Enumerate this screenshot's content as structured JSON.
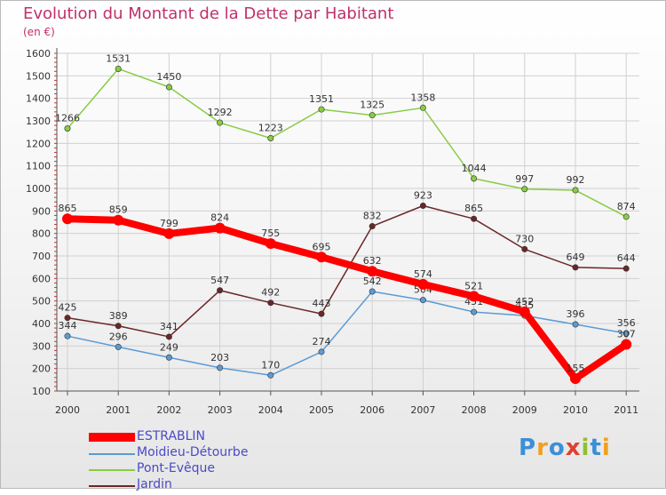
{
  "title": "Evolution du Montant de la Dette par Habitant",
  "unit": "(en €)",
  "logo": "Proxiti",
  "colors": {
    "grid": "#d0d0d0",
    "axis": "#555555",
    "tick_tiny": "#e0a0a0",
    "title": "#c0306a",
    "legend_text": "#4a4ac8"
  },
  "chart_data": {
    "type": "line",
    "title": "Evolution du Montant de la Dette par Habitant",
    "ylabel": "(en €)",
    "x": [
      "2000",
      "2001",
      "2002",
      "2003",
      "2004",
      "2005",
      "2006",
      "2007",
      "2008",
      "2009",
      "2010",
      "2011"
    ],
    "ylim": [
      100,
      1600
    ],
    "yticks": [
      100,
      200,
      300,
      400,
      500,
      600,
      700,
      800,
      900,
      1000,
      1100,
      1200,
      1300,
      1400,
      1500,
      1600
    ],
    "grid": true,
    "legend_position": "bottom-left",
    "series": [
      {
        "name": "Pont-Evêque",
        "color": "#88cc44",
        "width": 1.5,
        "values": [
          1266,
          1531,
          1450,
          1292,
          1223,
          1351,
          1325,
          1358,
          1044,
          997,
          992,
          874
        ]
      },
      {
        "name": "Jardin",
        "color": "#6b2626",
        "width": 1.5,
        "values": [
          425,
          389,
          341,
          547,
          492,
          443,
          832,
          923,
          865,
          730,
          649,
          644
        ]
      },
      {
        "name": "Moidieu-Détourbe",
        "color": "#5b9bd5",
        "width": 1.5,
        "values": [
          344,
          296,
          249,
          203,
          170,
          274,
          542,
          504,
          451,
          435,
          396,
          356
        ]
      },
      {
        "name": "ESTRABLIN",
        "color": "#ff0000",
        "width": 8,
        "values": [
          865,
          859,
          799,
          824,
          755,
          695,
          632,
          574,
          521,
          452,
          155,
          307
        ]
      }
    ],
    "legend_order": [
      "ESTRABLIN",
      "Moidieu-Détourbe",
      "Pont-Evêque",
      "Jardin"
    ]
  }
}
